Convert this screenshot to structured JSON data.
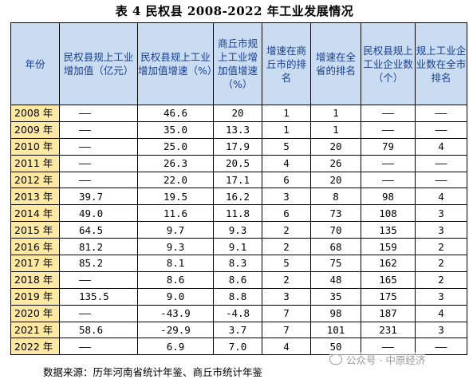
{
  "title": "表 4  民权县 2008-2022 年工业发展情况",
  "headers": [
    "年份",
    "民权县规上工业增加值（亿元）",
    "民权县规上工业增加值增速（%）",
    "商丘市规上工业增加值增速（%）",
    "增速在商丘市的排名",
    "增速在全省的排名",
    "民权县规上工业企业数（个）",
    "规上工业企业数在全市排名"
  ],
  "rows": [
    [
      "2008 年",
      "——",
      "46.6",
      "20",
      "1",
      "1",
      "——",
      "——"
    ],
    [
      "2009 年",
      "——",
      "35.0",
      "13.3",
      "1",
      "1",
      "——",
      "——"
    ],
    [
      "2010 年",
      "——",
      "25.0",
      "17.9",
      "5",
      "20",
      "79",
      "4"
    ],
    [
      "2011 年",
      "——",
      "26.3",
      "20.5",
      "4",
      "26",
      "——",
      "——"
    ],
    [
      "2012 年",
      "——",
      "22.0",
      "17.1",
      "6",
      "20",
      "——",
      "——"
    ],
    [
      "2013 年",
      "39.7",
      "19.5",
      "16.2",
      "3",
      "8",
      "98",
      "4"
    ],
    [
      "2014 年",
      "49.0",
      "11.6",
      "11.8",
      "6",
      "73",
      "108",
      "3"
    ],
    [
      "2015 年",
      "64.5",
      "9.7",
      "9.3",
      "2",
      "70",
      "135",
      "3"
    ],
    [
      "2016 年",
      "81.2",
      "9.3",
      "9.1",
      "2",
      "68",
      "159",
      "2"
    ],
    [
      "2017 年",
      "85.2",
      "8.1",
      "8.3",
      "5",
      "75",
      "162",
      "2"
    ],
    [
      "2018 年",
      "——",
      "8.6",
      "8.6",
      "2",
      "48",
      "165",
      "2"
    ],
    [
      "2019 年",
      "135.5",
      "9.0",
      "8.8",
      "3",
      "35",
      "175",
      "3"
    ],
    [
      "2020 年",
      "——",
      "-43.9",
      "-4.8",
      "7",
      "98",
      "187",
      "4"
    ],
    [
      "2021 年",
      "58.6",
      "-29.9",
      "3.7",
      "7",
      "101",
      "231",
      "3"
    ],
    [
      "2022 年",
      "——",
      "6.9",
      "7.0",
      "4",
      "50",
      "——",
      "——"
    ]
  ],
  "note": "数据来源：历年河南省统计年鉴、商丘市统计年鉴",
  "watermark": "公众号 · 中原经济"
}
